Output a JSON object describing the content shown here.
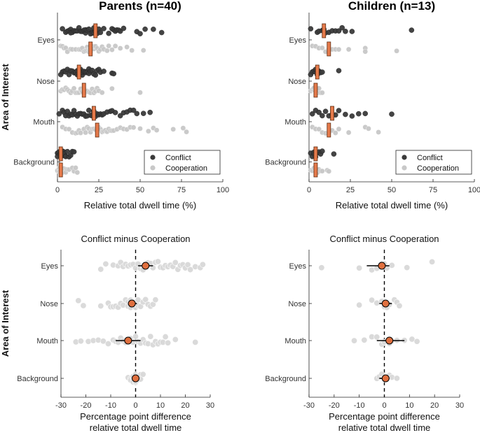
{
  "figure": {
    "colors": {
      "conflict": "#3a3a3a",
      "cooperation": "#c8c8c8",
      "median": "#e57a4b",
      "median_edge": "#5a2a10",
      "diff_point": "#d9d9d9",
      "mean_marker": "#e0703f"
    },
    "legend": {
      "conflict": "Conflict",
      "cooperation": "Cooperation"
    }
  },
  "chart_data": [
    {
      "id": "parents-dwell",
      "type": "scatter",
      "title": "Parents (n=40)",
      "xlabel": "Relative total dwell time (%)",
      "ylabel": "Area of Interest",
      "xlim": [
        0,
        100
      ],
      "xticks": [
        0,
        25,
        50,
        75,
        100
      ],
      "categories": [
        "Eyes",
        "Nose",
        "Mouth",
        "Background"
      ],
      "series": [
        {
          "name": "Conflict",
          "medians": [
            23,
            13,
            22,
            2
          ],
          "values": [
            [
              3,
              5,
              6,
              7,
              8,
              8,
              9,
              10,
              11,
              12,
              13,
              14,
              15,
              16,
              17,
              17,
              18,
              19,
              20,
              21,
              21,
              22,
              22,
              23,
              24,
              25,
              26,
              28,
              31,
              33,
              34,
              35,
              36,
              37,
              38,
              40,
              48,
              50,
              53,
              58,
              63
            ],
            [
              2,
              3,
              4,
              5,
              6,
              7,
              8,
              9,
              10,
              11,
              11,
              12,
              12,
              13,
              13,
              14,
              14,
              15,
              15,
              16,
              17,
              17,
              18,
              19,
              19,
              20,
              21,
              22,
              23,
              24,
              25,
              26,
              28,
              33,
              34
            ],
            [
              1,
              3,
              4,
              5,
              6,
              7,
              8,
              9,
              10,
              11,
              12,
              13,
              14,
              15,
              16,
              17,
              18,
              19,
              20,
              21,
              22,
              22,
              23,
              24,
              25,
              26,
              27,
              28,
              30,
              32,
              33,
              35,
              38,
              40,
              42,
              44,
              46,
              48,
              52,
              56
            ],
            [
              0,
              0,
              1,
              1,
              1,
              2,
              2,
              2,
              2,
              3,
              3,
              3,
              3,
              4,
              4,
              4,
              5,
              5,
              6,
              7,
              8,
              9,
              10
            ]
          ]
        },
        {
          "name": "Cooperation",
          "medians": [
            20,
            16,
            24,
            2
          ],
          "values": [
            [
              2,
              3,
              4,
              5,
              6,
              8,
              9,
              11,
              13,
              14,
              15,
              16,
              17,
              18,
              18,
              19,
              19,
              20,
              20,
              21,
              21,
              22,
              22,
              23,
              24,
              25,
              26,
              27,
              28,
              30,
              31,
              33,
              35,
              38,
              42,
              45,
              52
            ],
            [
              2,
              3,
              4,
              5,
              6,
              7,
              8,
              9,
              10,
              11,
              12,
              13,
              14,
              14,
              15,
              15,
              16,
              16,
              17,
              17,
              18,
              18,
              19,
              20,
              21,
              22,
              23,
              24,
              25,
              27,
              33,
              50
            ],
            [
              3,
              5,
              7,
              9,
              11,
              12,
              13,
              14,
              16,
              17,
              18,
              19,
              20,
              21,
              22,
              23,
              24,
              25,
              26,
              27,
              28,
              29,
              30,
              31,
              32,
              33,
              34,
              36,
              38,
              40,
              42,
              44,
              46,
              50,
              55,
              58,
              60,
              70,
              76,
              78
            ],
            [
              0,
              0,
              1,
              1,
              1,
              2,
              2,
              2,
              3,
              3,
              3,
              3,
              4,
              4,
              5,
              5,
              6,
              7,
              9,
              10,
              11,
              12
            ]
          ]
        }
      ]
    },
    {
      "id": "children-dwell",
      "type": "scatter",
      "title": "Children (n=13)",
      "xlabel": "Relative total dwell time (%)",
      "ylabel": "",
      "xlim": [
        0,
        100
      ],
      "xticks": [
        0,
        25,
        50,
        75,
        100
      ],
      "categories": [
        "Eyes",
        "Nose",
        "Mouth",
        "Background"
      ],
      "series": [
        {
          "name": "Conflict",
          "medians": [
            9,
            5,
            14,
            4
          ],
          "values": [
            [
              1,
              5,
              6,
              8,
              9,
              10,
              12,
              14,
              16,
              18,
              20,
              22,
              26,
              62
            ],
            [
              1,
              2,
              3,
              4,
              4,
              5,
              5,
              6,
              6,
              7,
              8,
              18
            ],
            [
              2,
              4,
              6,
              8,
              10,
              12,
              14,
              16,
              18,
              22,
              26,
              30,
              34,
              50
            ],
            [
              1,
              2,
              3,
              3,
              4,
              4,
              5,
              6,
              7,
              8,
              15
            ]
          ]
        },
        {
          "name": "Cooperation",
          "medians": [
            12,
            4,
            12,
            4
          ],
          "values": [
            [
              2,
              4,
              6,
              8,
              10,
              12,
              14,
              16,
              18,
              24,
              34,
              34,
              53
            ],
            [
              1,
              2,
              3,
              3,
              4,
              4,
              5,
              5,
              6,
              7,
              8
            ],
            [
              2,
              4,
              6,
              8,
              10,
              12,
              14,
              16,
              18,
              24,
              34,
              36,
              42
            ],
            [
              1,
              2,
              3,
              4,
              4,
              5,
              6,
              7,
              8,
              11,
              12
            ]
          ]
        }
      ]
    },
    {
      "id": "parents-diff",
      "type": "scatter",
      "title": "Conflict minus Cooperation",
      "xlabel": "Percentage point difference",
      "xlabel2": "relative total dwell time",
      "ylabel": "Area of Interest",
      "xlim": [
        -30,
        30
      ],
      "xticks": [
        -30,
        -20,
        -10,
        0,
        10,
        20,
        30
      ],
      "categories": [
        "Eyes",
        "Nose",
        "Mouth",
        "Background"
      ],
      "means": [
        4,
        -1.5,
        -3,
        0
      ],
      "ci": [
        [
          1,
          7
        ],
        [
          -3,
          0.5
        ],
        [
          -8,
          2
        ],
        [
          -1.5,
          1.5
        ]
      ],
      "values": [
        [
          -14,
          -12,
          -9,
          -7,
          -6,
          -5,
          -4,
          -3,
          -2,
          -1,
          0,
          1,
          2,
          3,
          3,
          4,
          5,
          5,
          6,
          7,
          8,
          9,
          10,
          11,
          12,
          13,
          14,
          15,
          16,
          17,
          18,
          19,
          20,
          21,
          22,
          24,
          26,
          27
        ],
        [
          -23,
          -21,
          -14,
          -11,
          -10,
          -9,
          -8,
          -7,
          -6,
          -5,
          -4,
          -3,
          -3,
          -2,
          -2,
          -1,
          -1,
          0,
          0,
          1,
          1,
          2,
          3,
          4,
          5,
          6,
          7,
          8
        ],
        [
          -24,
          -22,
          -19,
          -17,
          -15,
          -13,
          -11,
          -9,
          -8,
          -7,
          -6,
          -5,
          -4,
          -3,
          -2,
          -1,
          0,
          1,
          2,
          3,
          4,
          5,
          6,
          7,
          8,
          9,
          10,
          11,
          12,
          13,
          16,
          24
        ],
        [
          -3,
          -2,
          -2,
          -1,
          -1,
          -1,
          0,
          0,
          0,
          0,
          1,
          1,
          1,
          2,
          2,
          3
        ]
      ]
    },
    {
      "id": "children-diff",
      "type": "scatter",
      "title": "Conflict minus Cooperation",
      "xlabel": "Percentage point difference",
      "xlabel2": "relative total dwell time",
      "ylabel": "",
      "xlim": [
        -30,
        30
      ],
      "xticks": [
        -30,
        -20,
        -10,
        0,
        10,
        20,
        30
      ],
      "categories": [
        "Eyes",
        "Nose",
        "Mouth",
        "Background"
      ],
      "means": [
        -1,
        0.5,
        2,
        0.5
      ],
      "ci": [
        [
          -7,
          2
        ],
        [
          -2,
          3
        ],
        [
          -3,
          8
        ],
        [
          -2,
          2
        ]
      ],
      "values": [
        [
          -25,
          -10,
          -5,
          -3,
          -1,
          0,
          1,
          3,
          9,
          19
        ],
        [
          -10,
          -5,
          -3,
          -1,
          0,
          1,
          2,
          4,
          5,
          6
        ],
        [
          -12,
          -8,
          -5,
          -3,
          -1,
          0,
          2,
          3,
          5,
          8,
          11,
          13
        ],
        [
          -3,
          -2,
          -1,
          0,
          0,
          1,
          1,
          2,
          3,
          5
        ]
      ]
    }
  ]
}
